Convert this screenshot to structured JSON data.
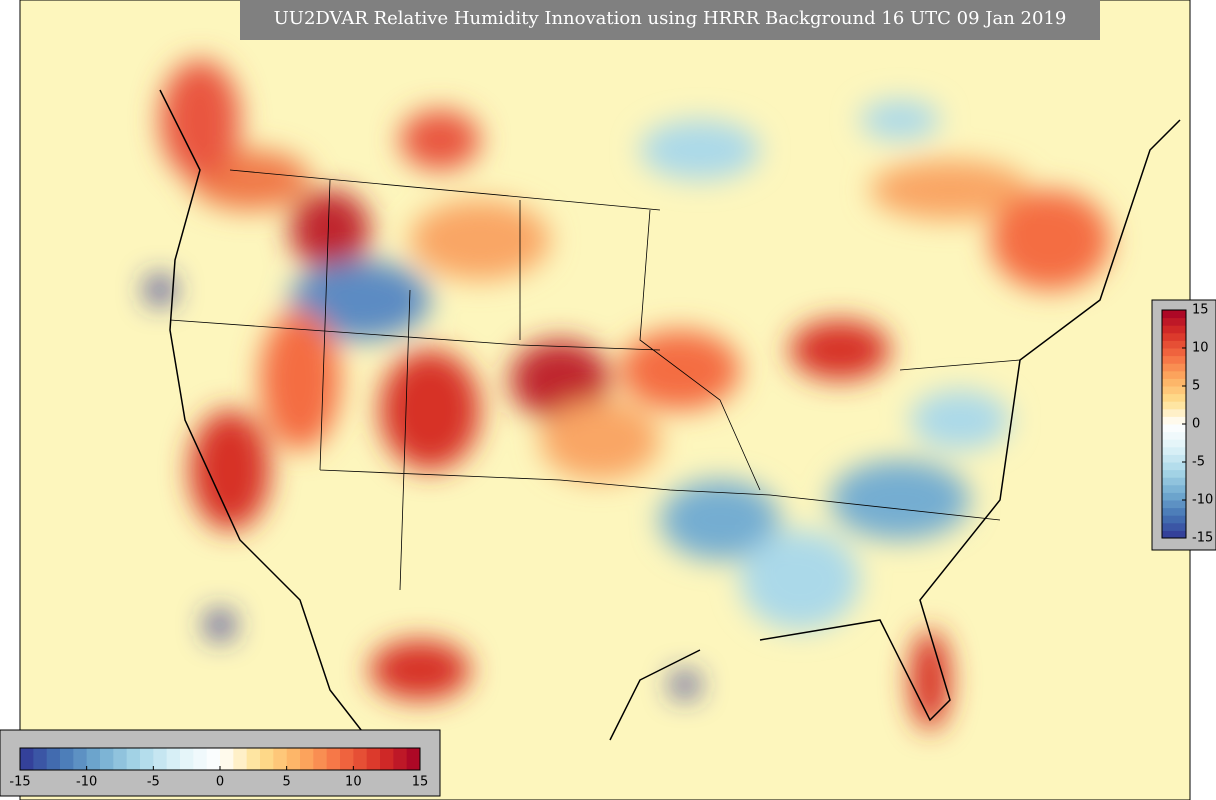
{
  "header": {
    "title": "UU2DVAR Relative Humidity Innovation using HRRR Background 16 UTC 09 Jan 2019"
  },
  "colorbar": {
    "lim": [
      -15,
      15
    ],
    "ticks": [
      -15,
      -10,
      -5,
      0,
      5,
      10,
      15
    ],
    "colors": [
      "#313695",
      "#4575b4",
      "#74add1",
      "#abd9e9",
      "#e0f3f8",
      "#ffffff",
      "#fee090",
      "#fdae61",
      "#f46d43",
      "#d73027",
      "#a50026"
    ]
  }
}
